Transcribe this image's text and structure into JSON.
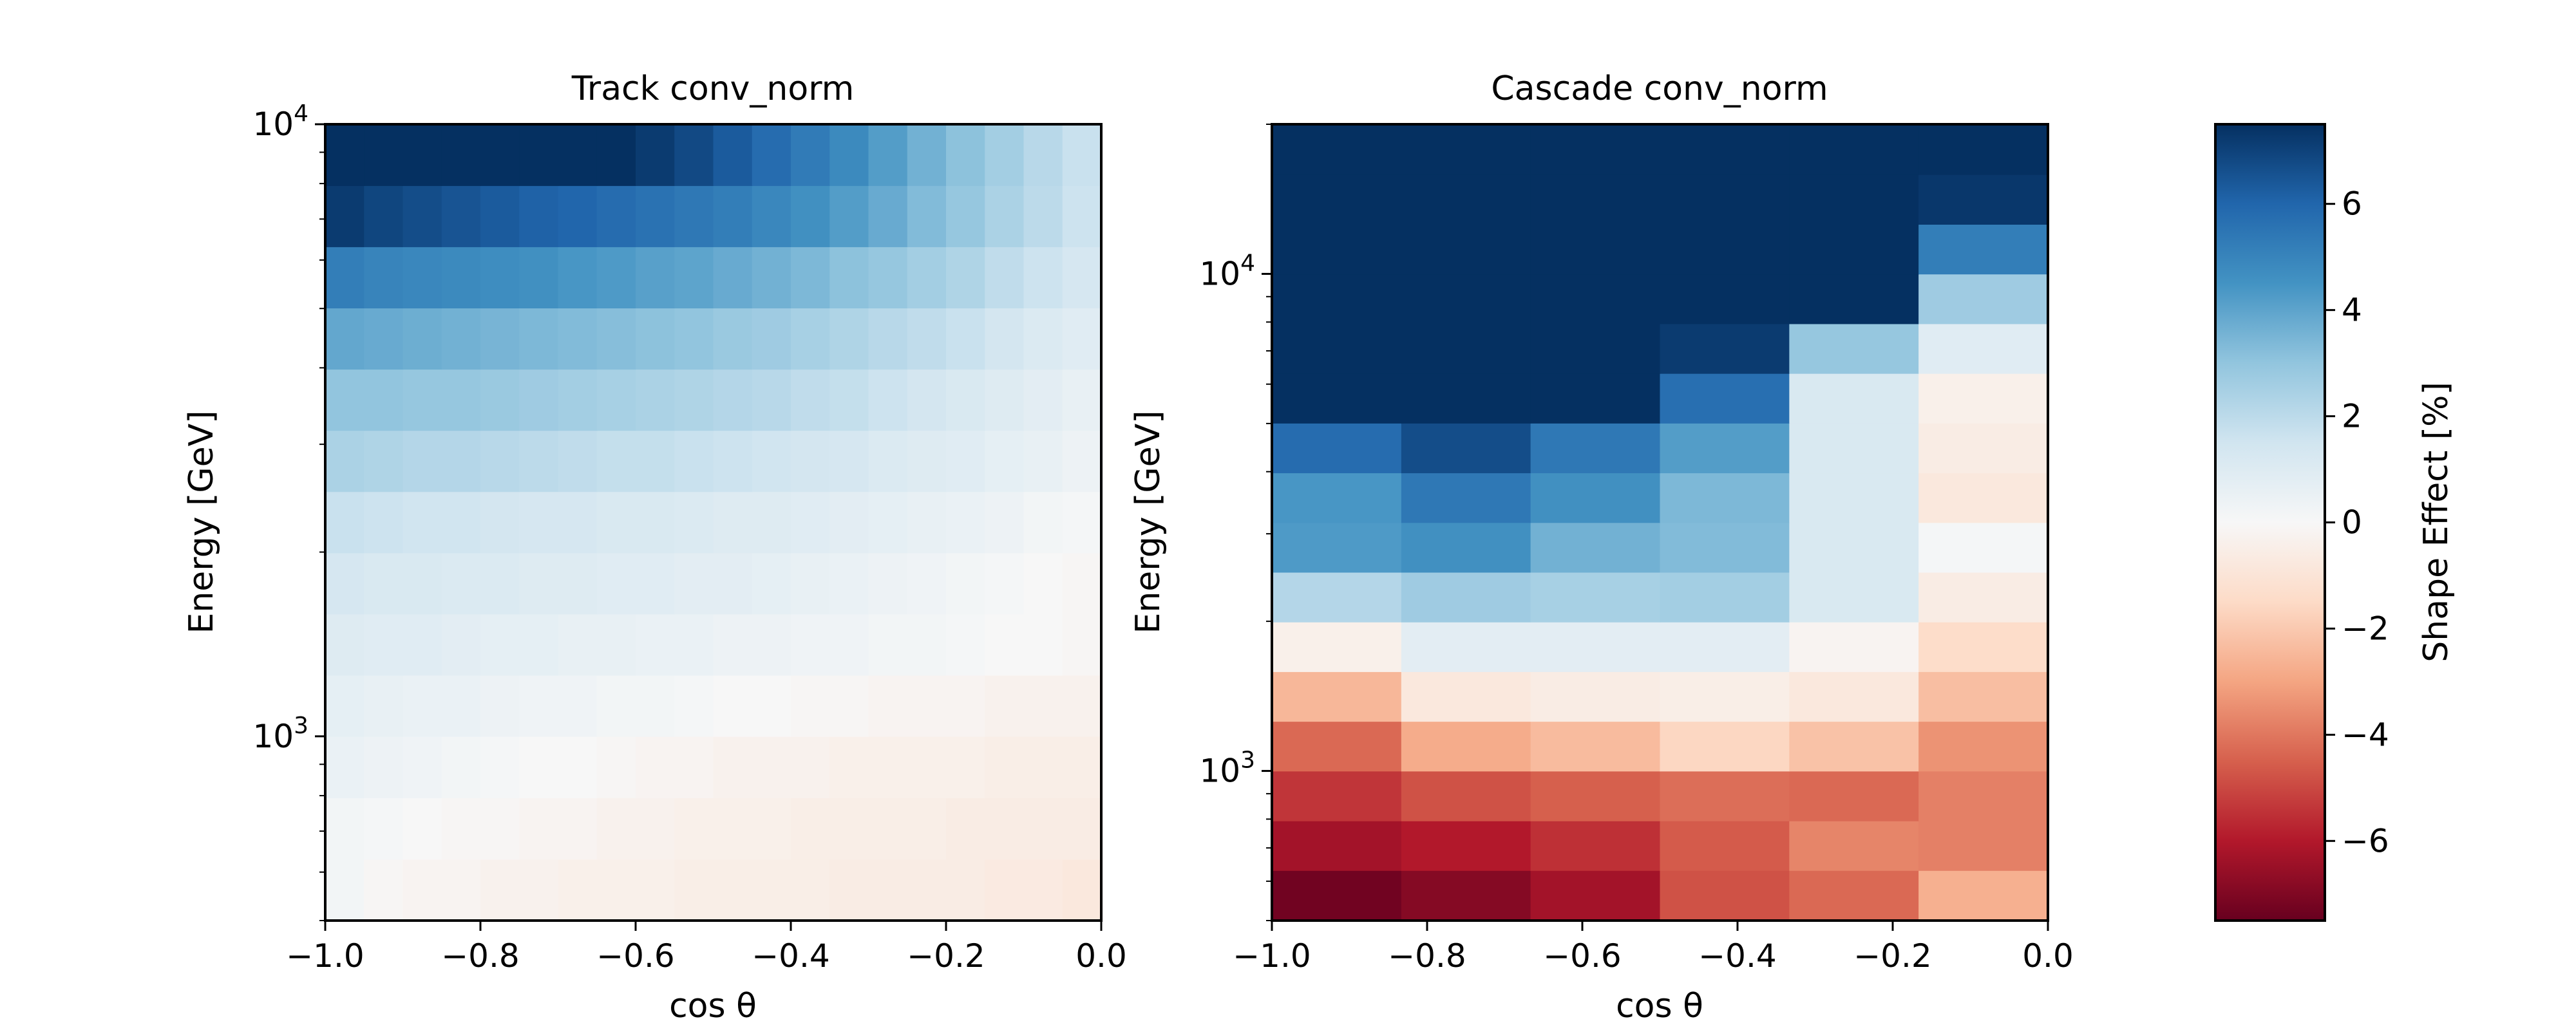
{
  "chart_data": [
    {
      "type": "heatmap",
      "title": "Track conv_norm",
      "xlabel": "cos θ",
      "ylabel": "Energy [GeV]",
      "xlim": [
        -1.0,
        0.0
      ],
      "ylim": [
        500,
        10000
      ],
      "yscale": "log",
      "x_ticks": [
        "−1.0",
        "−0.8",
        "−0.6",
        "−0.4",
        "−0.2",
        "0.0"
      ],
      "y_ticks": [
        "10^3",
        "10^4"
      ],
      "x_edges": [
        -1.0,
        -0.95,
        -0.9,
        -0.85,
        -0.8,
        -0.75,
        -0.7,
        -0.65,
        -0.6,
        -0.55,
        -0.5,
        -0.45,
        -0.4,
        -0.35,
        -0.3,
        -0.25,
        -0.2,
        -0.15,
        -0.1,
        -0.05,
        0.0
      ],
      "y_edges": [
        500,
        630,
        794,
        1000,
        1259,
        1585,
        1995,
        2512,
        3162,
        3981,
        5012,
        6310,
        7943,
        10000
      ],
      "values": [
        [
          0.2,
          -0.1,
          -0.2,
          -0.2,
          -0.3,
          -0.3,
          -0.4,
          -0.4,
          -0.4,
          -0.5,
          -0.5,
          -0.5,
          -0.5,
          -0.6,
          -0.6,
          -0.6,
          -0.6,
          -0.7,
          -0.7,
          -0.8
        ],
        [
          0.2,
          0.1,
          0.0,
          -0.1,
          -0.1,
          -0.2,
          -0.2,
          -0.3,
          -0.3,
          -0.4,
          -0.4,
          -0.4,
          -0.5,
          -0.5,
          -0.5,
          -0.5,
          -0.6,
          -0.6,
          -0.6,
          -0.6
        ],
        [
          0.5,
          0.4,
          0.3,
          0.2,
          0.1,
          0.0,
          0.0,
          -0.1,
          -0.2,
          -0.2,
          -0.3,
          -0.3,
          -0.3,
          -0.4,
          -0.4,
          -0.4,
          -0.4,
          -0.5,
          -0.5,
          -0.5
        ],
        [
          0.7,
          0.6,
          0.5,
          0.5,
          0.4,
          0.3,
          0.3,
          0.2,
          0.2,
          0.1,
          0.0,
          0.0,
          -0.1,
          -0.1,
          -0.2,
          -0.2,
          -0.2,
          -0.3,
          -0.3,
          -0.3
        ],
        [
          1.0,
          0.9,
          0.9,
          0.8,
          0.7,
          0.7,
          0.6,
          0.6,
          0.5,
          0.5,
          0.4,
          0.4,
          0.3,
          0.3,
          0.2,
          0.2,
          0.1,
          0.0,
          0.0,
          -0.1
        ],
        [
          1.3,
          1.2,
          1.2,
          1.1,
          1.1,
          1.0,
          1.0,
          0.9,
          0.9,
          0.8,
          0.8,
          0.7,
          0.6,
          0.5,
          0.4,
          0.3,
          0.2,
          0.1,
          0.0,
          -0.1
        ],
        [
          1.7,
          1.6,
          1.5,
          1.5,
          1.4,
          1.3,
          1.3,
          1.2,
          1.2,
          1.1,
          1.0,
          1.0,
          0.9,
          0.8,
          0.7,
          0.6,
          0.5,
          0.4,
          0.2,
          0.1
        ],
        [
          2.4,
          2.3,
          2.2,
          2.2,
          2.1,
          2.0,
          1.9,
          1.8,
          1.8,
          1.7,
          1.6,
          1.5,
          1.4,
          1.3,
          1.1,
          1.0,
          0.9,
          0.7,
          0.6,
          0.4
        ],
        [
          3.0,
          3.0,
          2.9,
          2.9,
          2.8,
          2.7,
          2.6,
          2.5,
          2.4,
          2.3,
          2.2,
          2.1,
          1.9,
          1.8,
          1.6,
          1.4,
          1.2,
          1.0,
          0.8,
          0.6
        ],
        [
          3.9,
          3.8,
          3.7,
          3.6,
          3.5,
          3.4,
          3.3,
          3.2,
          3.1,
          3.0,
          2.8,
          2.7,
          2.5,
          2.3,
          2.1,
          1.9,
          1.7,
          1.4,
          1.1,
          0.9
        ],
        [
          5.2,
          5.0,
          4.9,
          4.8,
          4.7,
          4.6,
          4.4,
          4.3,
          4.1,
          4.0,
          3.8,
          3.6,
          3.4,
          3.1,
          2.9,
          2.6,
          2.3,
          1.9,
          1.6,
          1.3
        ],
        [
          7.2,
          6.9,
          6.7,
          6.5,
          6.3,
          6.1,
          6.0,
          5.8,
          5.6,
          5.4,
          5.2,
          4.9,
          4.6,
          4.2,
          3.8,
          3.3,
          2.9,
          2.4,
          2.0,
          1.6
        ],
        [
          8.0,
          8.0,
          8.0,
          8.0,
          8.0,
          8.0,
          7.9,
          7.6,
          7.2,
          6.8,
          6.3,
          5.8,
          5.3,
          4.8,
          4.2,
          3.6,
          3.1,
          2.6,
          2.1,
          1.7
        ]
      ]
    },
    {
      "type": "heatmap",
      "title": "Cascade conv_norm",
      "xlabel": "cos θ",
      "ylabel": "Energy [GeV]",
      "xlim": [
        -1.0,
        0.0
      ],
      "ylim": [
        500,
        20000
      ],
      "yscale": "log",
      "x_ticks": [
        "−1.0",
        "−0.8",
        "−0.6",
        "−0.4",
        "−0.2",
        "0.0"
      ],
      "y_ticks": [
        "10^3",
        "10^4"
      ],
      "x_edges": [
        -1.0,
        -0.8333,
        -0.6667,
        -0.5,
        -0.3333,
        -0.1667,
        0.0
      ],
      "y_edges": [
        500,
        631,
        794,
        1000,
        1259,
        1585,
        1995,
        2512,
        3162,
        3981,
        5012,
        6310,
        7943,
        10000,
        12589,
        15849,
        20000
      ],
      "values": [
        [
          -7.3,
          -6.9,
          -6.3,
          -4.8,
          -4.3,
          -2.7
        ],
        [
          -6.3,
          -6.0,
          -5.5,
          -4.6,
          -3.7,
          -3.8
        ],
        [
          -5.4,
          -4.8,
          -4.5,
          -4.2,
          -4.3,
          -3.8
        ],
        [
          -4.3,
          -2.8,
          -2.4,
          -1.6,
          -2.2,
          -3.4
        ],
        [
          -2.5,
          -0.8,
          -0.6,
          -0.5,
          -0.8,
          -2.3
        ],
        [
          -0.4,
          0.8,
          0.8,
          0.8,
          -0.2,
          -1.4
        ],
        [
          2.2,
          2.7,
          2.5,
          2.6,
          1.2,
          -0.6
        ],
        [
          4.3,
          4.6,
          3.6,
          3.3,
          1.2,
          0.1
        ],
        [
          4.4,
          5.4,
          4.6,
          3.4,
          1.2,
          -0.8
        ],
        [
          5.8,
          6.7,
          5.4,
          4.2,
          1.2,
          -0.6
        ],
        [
          8.0,
          8.0,
          8.0,
          5.7,
          1.2,
          -0.4
        ],
        [
          8.0,
          8.0,
          8.0,
          7.2,
          2.9,
          0.9
        ],
        [
          8.0,
          8.0,
          8.0,
          8.0,
          8.0,
          2.7
        ],
        [
          8.0,
          8.0,
          8.0,
          8.0,
          8.0,
          5.2
        ],
        [
          8.0,
          8.0,
          8.0,
          8.0,
          8.0,
          7.3
        ],
        [
          8.0,
          8.0,
          8.0,
          8.0,
          8.0,
          8.0
        ]
      ]
    }
  ],
  "colorbar": {
    "label": "Shape Effect [%]",
    "vmin": -7.5,
    "vmax": 7.5,
    "ticks": [
      6,
      4,
      2,
      0,
      -2,
      -4,
      -6
    ],
    "tick_labels": [
      "6",
      "4",
      "2",
      "0",
      "−2",
      "−4",
      "−6"
    ],
    "colormap": "RdBu",
    "colors": [
      "#67001f",
      "#b2182b",
      "#d6604d",
      "#f4a582",
      "#fddbc7",
      "#f7f7f7",
      "#d1e5f0",
      "#92c5de",
      "#4393c3",
      "#2166ac",
      "#053061"
    ]
  }
}
